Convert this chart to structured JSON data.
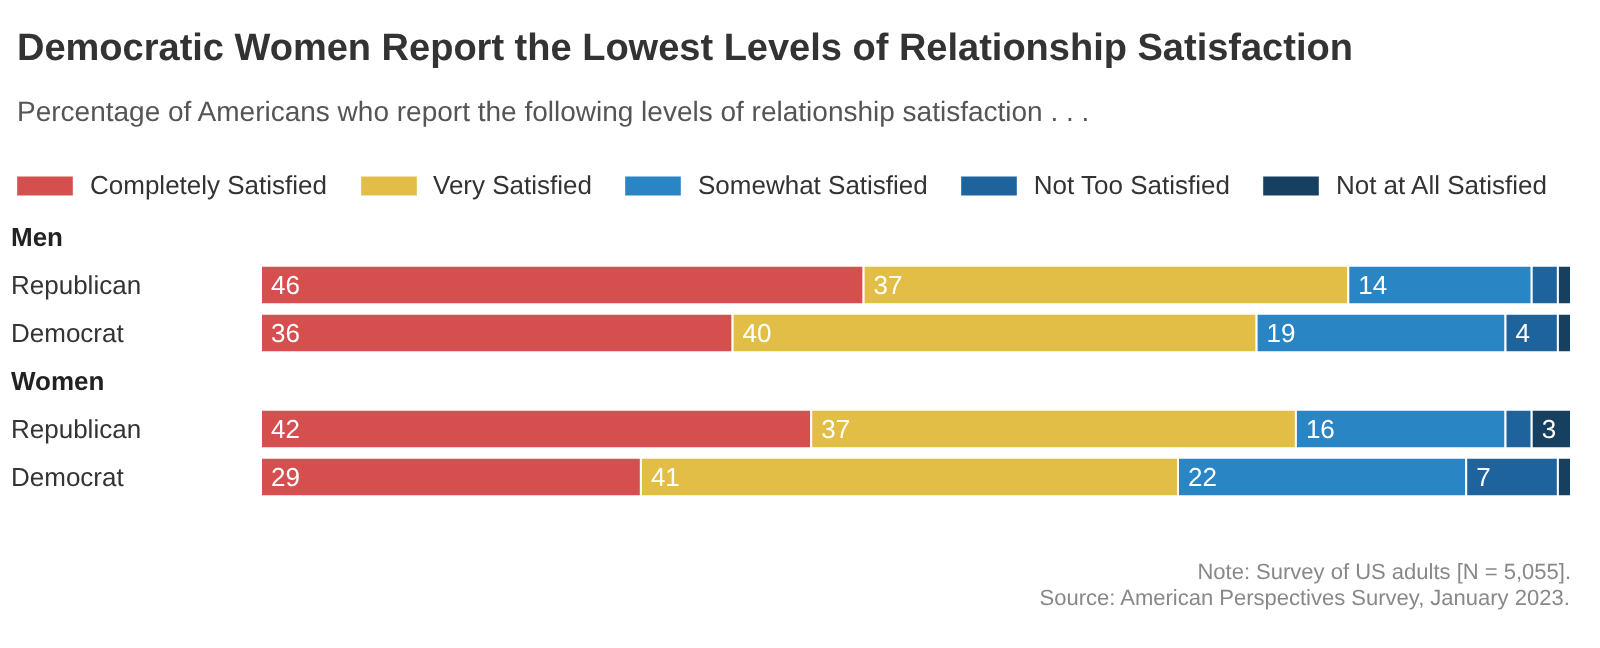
{
  "chart_data": {
    "type": "bar",
    "orientation": "horizontal",
    "stacked": true,
    "title": "Democratic Women Report the Lowest Levels of Relationship Satisfaction",
    "subtitle": "Percentage of Americans who report the following levels of relationship satisfaction . . .",
    "categories": [
      "Republican",
      "Democrat",
      "Republican",
      "Democrat"
    ],
    "series": [
      {
        "name": "Completely Satisfied",
        "color": "#d64f4f",
        "values": [
          46,
          36,
          42,
          29
        ],
        "value_labels": [
          "46",
          "36",
          "42",
          "29"
        ]
      },
      {
        "name": "Very Satisfied",
        "color": "#e3be47",
        "values": [
          37,
          40,
          37,
          41
        ],
        "value_labels": [
          "37",
          "40",
          "37",
          "41"
        ]
      },
      {
        "name": "Somewhat Satisfied",
        "color": "#2a85c4",
        "values": [
          14,
          19,
          16,
          22
        ],
        "value_labels": [
          "14",
          "19",
          "16",
          "22"
        ]
      },
      {
        "name": "Not Too Satisfied",
        "color": "#1e639c",
        "values": [
          2,
          4,
          2,
          7
        ],
        "value_labels": [
          null,
          "4",
          null,
          "7"
        ]
      },
      {
        "name": "Not at All Satisfied",
        "color": "#163f60",
        "values": [
          1,
          1,
          3,
          1
        ],
        "value_labels": [
          null,
          null,
          "3",
          null
        ]
      }
    ],
    "xlim": [
      0,
      100
    ],
    "tick_labels": "y",
    "grid": false,
    "legend": "top left",
    "annotations": [
      "Men",
      "Women",
      "Note: Survey of US adults [N = 5,055].",
      "Source: American Perspectives Survey, January 2023."
    ]
  }
}
